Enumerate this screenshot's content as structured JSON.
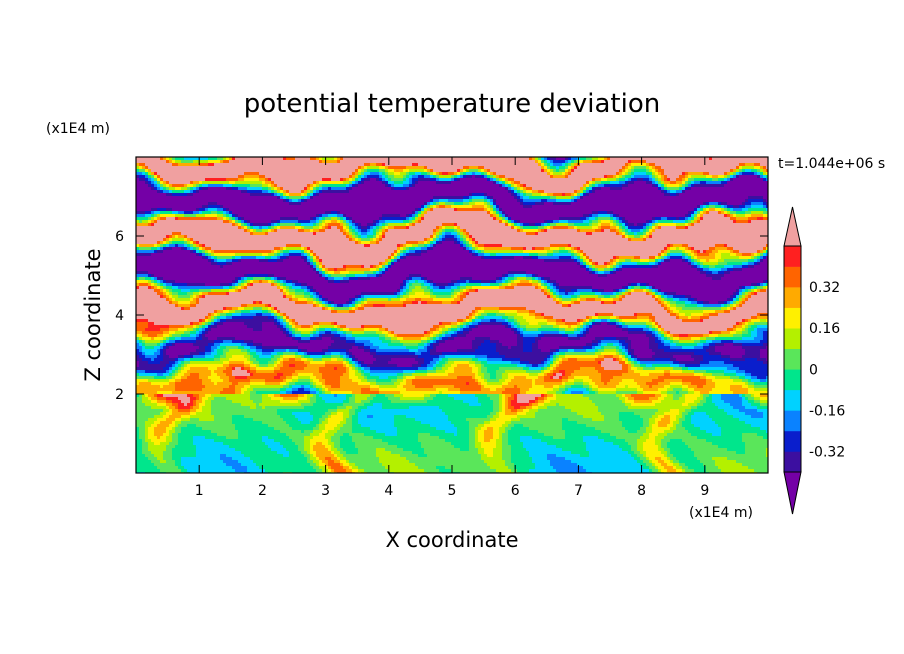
{
  "chart_data": {
    "type": "heatmap",
    "title": "potential temperature deviation",
    "time_label": "t=1.044e+06 s",
    "xlabel": "X coordinate",
    "ylabel": "Z coordinate",
    "x_unit": "(x1E4 m)",
    "y_unit": "(x1E4 m)",
    "xlim": [
      0,
      10
    ],
    "ylim": [
      0,
      8
    ],
    "x_ticks": [
      "1",
      "2",
      "3",
      "4",
      "5",
      "6",
      "7",
      "8",
      "9"
    ],
    "y_ticks": [
      "2",
      "4",
      "6"
    ],
    "colorbar": {
      "labels": [
        "0.32",
        "0.16",
        "0",
        "-0.16",
        "-0.32"
      ],
      "levels": [
        -0.48,
        -0.4,
        -0.32,
        -0.24,
        -0.16,
        -0.08,
        0,
        0.08,
        0.16,
        0.24,
        0.32,
        0.4,
        0.48
      ],
      "colors": [
        "#7400a6",
        "#3c0fa0",
        "#0a1ecc",
        "#0a82ff",
        "#00d2ff",
        "#00e68c",
        "#5ae65a",
        "#b4f000",
        "#fff000",
        "#ffaa00",
        "#ff6400",
        "#ff2020",
        "#f0a0a0"
      ]
    }
  }
}
